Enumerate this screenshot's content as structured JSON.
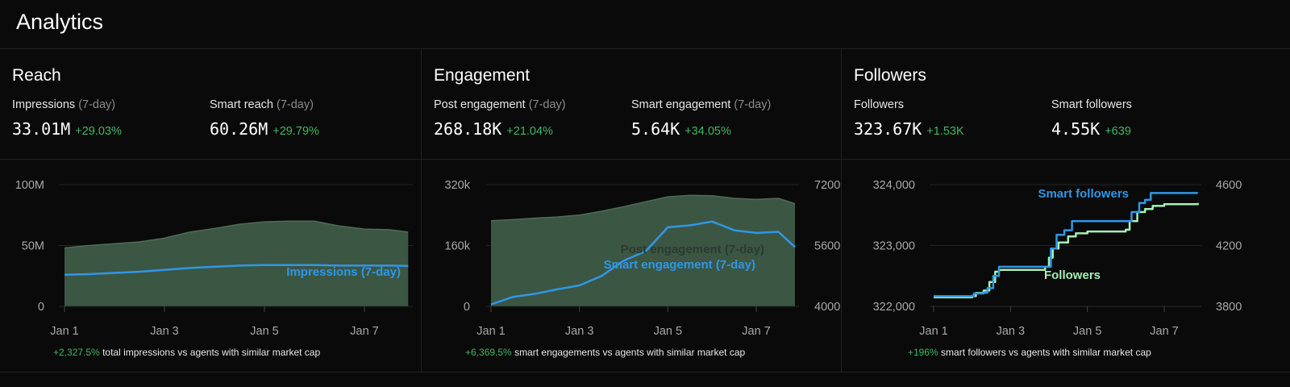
{
  "title": "Analytics",
  "colors": {
    "area_fill": "#3c5644",
    "area_edge": "#4f6b57",
    "blue": "#2f97e6",
    "green_line": "#a6efb6",
    "positive": "#3fb860",
    "grid": "#242424"
  },
  "panels": [
    {
      "title": "Reach",
      "metrics": [
        {
          "label": "Impressions",
          "sub": "(7-day)",
          "value": "33.01M",
          "change": "+29.03%"
        },
        {
          "label": "Smart reach",
          "sub": "(7-day)",
          "value": "60.26M",
          "change": "+29.79%"
        }
      ],
      "footer": {
        "pct": "+2,327.5%",
        "text": "total impressions vs agents with similar market cap"
      }
    },
    {
      "title": "Engagement",
      "metrics": [
        {
          "label": "Post engagement",
          "sub": "(7-day)",
          "value": "268.18K",
          "change": "+21.04%"
        },
        {
          "label": "Smart engagement",
          "sub": "(7-day)",
          "value": "5.64K",
          "change": "+34.05%"
        }
      ],
      "footer": {
        "pct": "+6,369.5%",
        "text": "smart engagements vs agents with similar market cap"
      }
    },
    {
      "title": "Followers",
      "metrics": [
        {
          "label": "Followers",
          "sub": "",
          "value": "323.67K",
          "change": "+1.53K"
        },
        {
          "label": "Smart followers",
          "sub": "",
          "value": "4.55K",
          "change": "+639"
        }
      ],
      "footer": {
        "pct": "+196%",
        "text": "smart followers vs agents with similar market cap"
      }
    }
  ],
  "chart_data": [
    {
      "type": "area",
      "x_ticks": [
        "Jan 1",
        "Jan 3",
        "Jan 5",
        "Jan 7"
      ],
      "left_axis": {
        "ticks": [
          "0",
          "50M",
          "100M"
        ],
        "range": [
          0,
          100000000
        ]
      },
      "grid": true,
      "series": [
        {
          "axis": "left",
          "style": "area",
          "x": [
            "Jan 1 00:00",
            "Jan 1 12:00",
            "Jan 2 00:00",
            "Jan 2 12:00",
            "Jan 3 00:00",
            "Jan 3 12:00",
            "Jan 4 00:00",
            "Jan 4 12:00",
            "Jan 5 00:00",
            "Jan 5 12:00",
            "Jan 6 00:00",
            "Jan 6 12:00",
            "Jan 7 00:00",
            "Jan 7 12:00",
            "Jan 7 21:00"
          ],
          "values": [
            48000000,
            50000000,
            51500000,
            53000000,
            56000000,
            61000000,
            64000000,
            67500000,
            69500000,
            70000000,
            70000000,
            66000000,
            63500000,
            63000000,
            61000000
          ]
        },
        {
          "name": "Impressions (7-day)",
          "axis": "left",
          "style": "line",
          "x": [
            "Jan 1 00:00",
            "Jan 1 12:00",
            "Jan 2 00:00",
            "Jan 2 12:00",
            "Jan 3 00:00",
            "Jan 3 12:00",
            "Jan 4 00:00",
            "Jan 4 12:00",
            "Jan 5 00:00",
            "Jan 5 12:00",
            "Jan 6 00:00",
            "Jan 6 12:00",
            "Jan 7 00:00",
            "Jan 7 12:00",
            "Jan 7 21:00"
          ],
          "values": [
            26000000,
            26500000,
            27500000,
            28500000,
            30000000,
            31500000,
            32500000,
            33500000,
            34000000,
            34000000,
            34000000,
            33500000,
            33500000,
            33500000,
            33200000
          ]
        }
      ]
    },
    {
      "type": "area",
      "x_ticks": [
        "Jan 1",
        "Jan 3",
        "Jan 5",
        "Jan 7"
      ],
      "left_axis": {
        "ticks": [
          "0",
          "160k",
          "320k"
        ],
        "range": [
          0,
          320000
        ]
      },
      "right_axis": {
        "ticks": [
          "4000",
          "5600",
          "7200"
        ],
        "range": [
          4000,
          7200
        ]
      },
      "grid": true,
      "series": [
        {
          "name": "Post engagement (7-day)",
          "axis": "left",
          "style": "area",
          "x": [
            "Jan 1 00:00",
            "Jan 1 12:00",
            "Jan 2 00:00",
            "Jan 2 12:00",
            "Jan 3 00:00",
            "Jan 3 12:00",
            "Jan 4 00:00",
            "Jan 4 12:00",
            "Jan 5 00:00",
            "Jan 5 12:00",
            "Jan 6 00:00",
            "Jan 6 12:00",
            "Jan 7 00:00",
            "Jan 7 12:00",
            "Jan 7 21:00"
          ],
          "values": [
            225000,
            228000,
            232000,
            235000,
            240000,
            250000,
            262000,
            275000,
            288000,
            292000,
            291000,
            284000,
            281000,
            284000,
            270000
          ]
        },
        {
          "name": "Smart engagement (7-day)",
          "axis": "right",
          "style": "line",
          "x": [
            "Jan 1 00:00",
            "Jan 1 12:00",
            "Jan 2 00:00",
            "Jan 2 12:00",
            "Jan 3 00:00",
            "Jan 3 12:00",
            "Jan 4 00:00",
            "Jan 4 12:00",
            "Jan 5 00:00",
            "Jan 5 12:00",
            "Jan 6 00:00",
            "Jan 6 12:00",
            "Jan 7 00:00",
            "Jan 7 12:00",
            "Jan 7 21:00"
          ],
          "values": [
            4050,
            4250,
            4330,
            4450,
            4550,
            4800,
            5200,
            5450,
            6080,
            6130,
            6230,
            6000,
            5930,
            5960,
            5560
          ]
        }
      ]
    },
    {
      "type": "line",
      "x_ticks": [
        "Jan 1",
        "Jan 3",
        "Jan 5",
        "Jan 7"
      ],
      "left_axis": {
        "ticks": [
          "322,000",
          "323,000",
          "324,000"
        ],
        "range": [
          322000,
          324000
        ]
      },
      "right_axis": {
        "ticks": [
          "3800",
          "4200",
          "4600"
        ],
        "range": [
          3800,
          4600
        ]
      },
      "grid": true,
      "series": [
        {
          "name": "Followers",
          "axis": "left",
          "style": "step",
          "x": [
            "Jan 1 00:00",
            "Jan 2 00:00",
            "Jan 2 02:24",
            "Jan 2 07:12",
            "Jan 2 10:48",
            "Jan 2 14:24",
            "Jan 2 16:48",
            "Jan 3 21:36",
            "Jan 4 00:00",
            "Jan 4 02:24",
            "Jan 4 06:00",
            "Jan 4 12:00",
            "Jan 4 16:48",
            "Jan 5 00:00",
            "Jan 6 00:00",
            "Jan 6 02:24",
            "Jan 6 07:12",
            "Jan 6 12:00",
            "Jan 6 16:48",
            "Jan 7 00:00",
            "Jan 7 21:00"
          ],
          "values": [
            322150,
            322170,
            322220,
            322260,
            322400,
            322570,
            322600,
            322650,
            322800,
            322950,
            323050,
            323150,
            323200,
            323230,
            323260,
            323400,
            323550,
            323600,
            323650,
            323680,
            323700
          ]
        },
        {
          "name": "Smart followers",
          "axis": "right",
          "style": "step",
          "x": [
            "Jan 1 00:00",
            "Jan 2 00:00",
            "Jan 2 01:12",
            "Jan 2 07:12",
            "Jan 2 09:36",
            "Jan 2 13:12",
            "Jan 2 16:48",
            "Jan 3 22:48",
            "Jan 4 01:12",
            "Jan 4 04:48",
            "Jan 4 09:36",
            "Jan 4 14:24",
            "Jan 6 01:12",
            "Jan 6 03:36",
            "Jan 6 08:24",
            "Jan 6 12:00",
            "Jan 6 15:36",
            "Jan 7 21:00"
          ],
          "values": [
            3867,
            3870,
            3885,
            3890,
            3920,
            4000,
            4060,
            4060,
            4180,
            4270,
            4300,
            4360,
            4360,
            4420,
            4480,
            4500,
            4545,
            4545
          ]
        }
      ]
    }
  ]
}
